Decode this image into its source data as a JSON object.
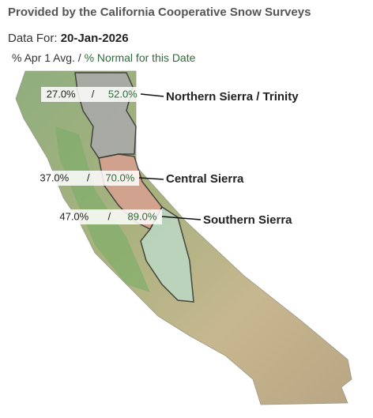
{
  "header": {
    "title": "Provided by the California Cooperative Snow Surveys",
    "data_for_label": "Data For:",
    "date": "20-Jan-2026"
  },
  "legend": {
    "apr1_avg": "% Apr 1 Avg.",
    "separator": "/",
    "pct_normal": "% Normal for this Date"
  },
  "regions": [
    {
      "name": "Northern Sierra / Trinity",
      "apr1_avg": "27.0%",
      "separator": "/",
      "pct_normal": "52.0%"
    },
    {
      "name": "Central Sierra",
      "apr1_avg": "37.0%",
      "separator": "/",
      "pct_normal": "70.0%"
    },
    {
      "name": "Southern Sierra",
      "apr1_avg": "47.0%",
      "separator": "/",
      "pct_normal": "89.0%"
    }
  ]
}
